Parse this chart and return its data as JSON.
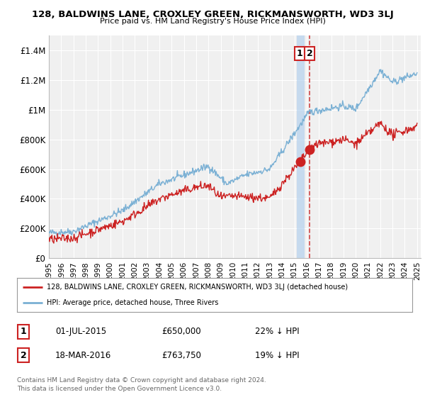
{
  "title": "128, BALDWINS LANE, CROXLEY GREEN, RICKMANSWORTH, WD3 3LJ",
  "subtitle": "Price paid vs. HM Land Registry's House Price Index (HPI)",
  "hpi_color": "#7ab0d4",
  "price_color": "#cc2222",
  "vline1_color": "#aaccee",
  "vline2_color": "#cc3333",
  "background_color": "#ffffff",
  "plot_bg_color": "#f0f0f0",
  "grid_color": "#ffffff",
  "ylim": [
    0,
    1500000
  ],
  "yticks": [
    0,
    200000,
    400000,
    600000,
    800000,
    1000000,
    1200000,
    1400000
  ],
  "ytick_labels": [
    "£0",
    "£200K",
    "£400K",
    "£600K",
    "£800K",
    "£1M",
    "£1.2M",
    "£1.4M"
  ],
  "year_start": 1995,
  "year_end": 2025,
  "transaction1_date": 2015.5,
  "transaction1_price": 650000,
  "transaction1_label": "1",
  "transaction2_date": 2016.21,
  "transaction2_price": 763750,
  "transaction2_label": "2",
  "legend_entry1": "128, BALDWINS LANE, CROXLEY GREEN, RICKMANSWORTH, WD3 3LJ (detached house)",
  "legend_entry2": "HPI: Average price, detached house, Three Rivers",
  "table_row1": [
    "1",
    "01-JUL-2015",
    "£650,000",
    "22% ↓ HPI"
  ],
  "table_row2": [
    "2",
    "18-MAR-2016",
    "£763,750",
    "19% ↓ HPI"
  ],
  "footer": "Contains HM Land Registry data © Crown copyright and database right 2024.\nThis data is licensed under the Open Government Licence v3.0."
}
